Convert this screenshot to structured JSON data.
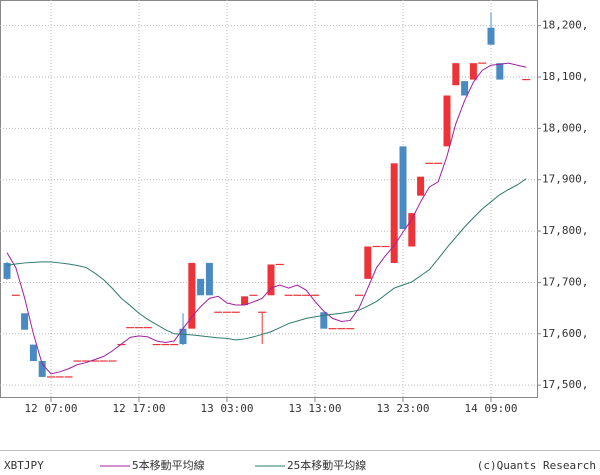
{
  "chart_data": {
    "type": "candlestick",
    "symbol": "XBTJPY",
    "credit": "(c)Quants Research",
    "up_color": "#ee3338",
    "down_color": "#4a8ac2",
    "grid": true,
    "categories": [
      null,
      null,
      null,
      null,
      null,
      "12 07:00",
      null,
      null,
      null,
      null,
      null,
      null,
      null,
      null,
      null,
      "12 17:00",
      null,
      null,
      null,
      null,
      null,
      null,
      null,
      null,
      null,
      "13 03:00",
      null,
      null,
      null,
      null,
      null,
      null,
      null,
      null,
      null,
      "13 13:00",
      null,
      null,
      null,
      null,
      null,
      null,
      null,
      null,
      null,
      "13 23:00",
      null,
      null,
      null,
      null,
      null,
      null,
      null,
      null,
      null,
      "14 09:00",
      null,
      null,
      null,
      null
    ],
    "open": [
      17738,
      17675,
      17640,
      17579,
      17547,
      17516,
      17516,
      17516,
      17547,
      17547,
      17547,
      17547,
      17547,
      17579,
      17612,
      17612,
      17612,
      17579,
      17579,
      17579,
      17610,
      17610,
      17707,
      17738,
      17642,
      17642,
      17642,
      17656,
      17675,
      17642,
      17675,
      17735,
      17675,
      17675,
      17675,
      17675,
      17642,
      17610,
      17610,
      17610,
      17675,
      17707,
      17770,
      17770,
      17738,
      17965,
      17770,
      17869,
      17932,
      17932,
      17965,
      18084,
      18092,
      18095,
      18127,
      18196,
      18127,
      null,
      null,
      18095
    ],
    "high": [
      17740,
      17675,
      17640,
      17579,
      17547,
      17516,
      17516,
      17516,
      17547,
      17547,
      17547,
      17547,
      17547,
      17579,
      17612,
      17612,
      17612,
      17579,
      17579,
      17579,
      17640,
      17738,
      17707,
      17738,
      17642,
      17642,
      17642,
      17673,
      17675,
      17642,
      17735,
      17735,
      17675,
      17675,
      17675,
      17675,
      17642,
      17610,
      17610,
      17610,
      17675,
      17770,
      17770,
      17770,
      17932,
      17965,
      17835,
      17906,
      17932,
      17932,
      18064,
      18127,
      18092,
      18127,
      18127,
      18226,
      18127,
      null,
      null,
      18095
    ],
    "low": [
      17705,
      17675,
      17608,
      17547,
      17516,
      17516,
      17516,
      17516,
      17547,
      17547,
      17547,
      17547,
      17547,
      17579,
      17612,
      17612,
      17612,
      17579,
      17579,
      17579,
      17578,
      17610,
      17675,
      17675,
      17642,
      17642,
      17642,
      17656,
      17675,
      17580,
      17675,
      17735,
      17675,
      17675,
      17675,
      17675,
      17610,
      17610,
      17610,
      17610,
      17675,
      17707,
      17770,
      17770,
      17738,
      17804,
      17770,
      17869,
      17932,
      17932,
      17965,
      18084,
      18064,
      18095,
      18127,
      18163,
      18095,
      null,
      null,
      18095
    ],
    "close": [
      17707,
      17675,
      17608,
      17547,
      17516,
      17516,
      17516,
      17516,
      17547,
      17547,
      17547,
      17547,
      17547,
      17579,
      17612,
      17612,
      17612,
      17579,
      17579,
      17579,
      17580,
      17738,
      17675,
      17675,
      17642,
      17642,
      17642,
      17673,
      17675,
      17642,
      17735,
      17735,
      17675,
      17675,
      17675,
      17675,
      17610,
      17610,
      17610,
      17610,
      17675,
      17770,
      17770,
      17770,
      17932,
      17804,
      17835,
      17906,
      17932,
      17932,
      18064,
      18127,
      18064,
      18127,
      18127,
      18163,
      18095,
      null,
      null,
      18095
    ],
    "series": [
      {
        "name": "5本移動平均線",
        "color": "#a020a0",
        "values": [
          17758,
          17729,
          17670,
          17600,
          17541,
          17522,
          17526,
          17532,
          17540,
          17544,
          17550,
          17556,
          17567,
          17580,
          17593,
          17596,
          17594,
          17586,
          17583,
          17586,
          17610,
          17633,
          17653,
          17669,
          17673,
          17660,
          17656,
          17656,
          17662,
          17669,
          17689,
          17695,
          17689,
          17695,
          17685,
          17663,
          17644,
          17630,
          17624,
          17626,
          17650,
          17689,
          17729,
          17752,
          17772,
          17798,
          17823,
          17857,
          17886,
          17896,
          17946,
          18009,
          18054,
          18090,
          18113,
          18123,
          18125,
          18127,
          18123,
          18119
        ]
      },
      {
        "name": "25本移動平均線",
        "color": "#2e7a6e",
        "values": [
          17733,
          17736,
          17738,
          17739,
          17740,
          17740,
          17738,
          17736,
          17733,
          17729,
          17718,
          17705,
          17688,
          17669,
          17655,
          17640,
          17628,
          17618,
          17608,
          17600,
          17599,
          17598,
          17596,
          17594,
          17592,
          17591,
          17588,
          17590,
          17594,
          17599,
          17604,
          17612,
          17620,
          17625,
          17630,
          17633,
          17636,
          17638,
          17640,
          17643,
          17646,
          17654,
          17663,
          17676,
          17689,
          17695,
          17701,
          17713,
          17725,
          17746,
          17768,
          17788,
          17808,
          17826,
          17843,
          17857,
          17871,
          17881,
          17890,
          17902
        ]
      }
    ],
    "ylim": [
      17475,
      18250
    ],
    "yticks": [
      {
        "value": 17500,
        "label": "17,500,"
      },
      {
        "value": 17600,
        "label": "17,600,"
      },
      {
        "value": 17700,
        "label": "17,700,"
      },
      {
        "value": 17800,
        "label": "17,800,"
      },
      {
        "value": 17900,
        "label": "17,900,"
      },
      {
        "value": 18000,
        "label": "18,000,"
      },
      {
        "value": 18100,
        "label": "18,100,"
      },
      {
        "value": 18200,
        "label": "18,200,"
      }
    ]
  }
}
